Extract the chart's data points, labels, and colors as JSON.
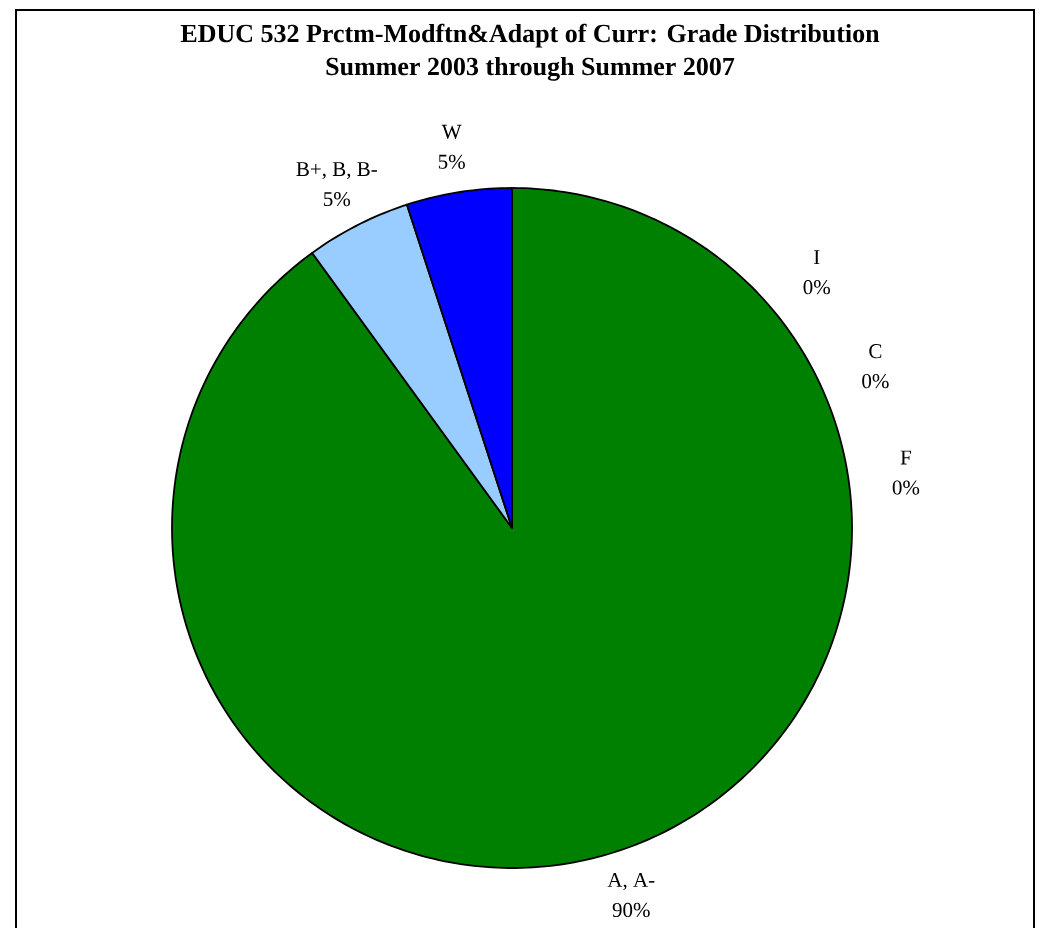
{
  "chart_data": {
    "type": "pie",
    "title": "EDUC 532 Prctm-Modftn&Adapt of Curr: Grade Distribution",
    "subtitle": "Summer 2003 through Summer 2007",
    "categories": [
      "I",
      "C",
      "F",
      "A, A-",
      "B+, B, B-",
      "W"
    ],
    "values": [
      0,
      0,
      0,
      90,
      5,
      5
    ],
    "colors": [
      null,
      null,
      null,
      "#008000",
      "#99ccff",
      "#0000ff"
    ],
    "value_labels": [
      "0%",
      "0%",
      "0%",
      "90%",
      "5%",
      "5%"
    ]
  }
}
